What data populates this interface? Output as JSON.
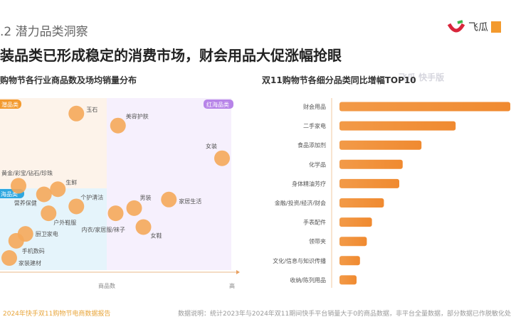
{
  "header": {
    "section": ".2 潜力品类洞察",
    "title": "装品类已形成稳定的消费市场，财会用品大促涨幅抢眼",
    "logo_text": "飞瓜"
  },
  "watermark": "飞瓜 快手版",
  "colors": {
    "accent": "#f39a2e",
    "bubble": "#f5a85a",
    "bar": "#f08a30",
    "q_potential": "#fdf3ea",
    "q_blue": "#e5f4fb",
    "q_red": "#f6f0fd",
    "tag_orange": "#f39a2e",
    "tag_blue": "#2ea7e0",
    "tag_purple": "#b784e8"
  },
  "chart_data": [
    {
      "type": "scatter",
      "title": "购物节各行业商品数及场均销量分布",
      "xlabel": "商品数",
      "x_high_label": "高",
      "quadrant_labels": {
        "top_left": "潜品类",
        "top_right": "红海品类",
        "bottom_left": "海品类"
      },
      "xlim": [
        0,
        100
      ],
      "ylim": [
        0,
        100
      ],
      "points": [
        {
          "label": "玉石",
          "x": 33,
          "y": 91
        },
        {
          "label": "美容护肤",
          "x": 51,
          "y": 84
        },
        {
          "label": "女装",
          "x": 96,
          "y": 65
        },
        {
          "label": "黄金/彩宝/钻石/珍珠",
          "x": 8,
          "y": 49
        },
        {
          "label": "生鲜",
          "x": 25,
          "y": 47
        },
        {
          "label": "营养保健",
          "x": 19,
          "y": 44
        },
        {
          "label": "个护清洁",
          "x": 33,
          "y": 37
        },
        {
          "label": "户外鞋服",
          "x": 21,
          "y": 33
        },
        {
          "label": "内衣/家居服/袜子",
          "x": 50,
          "y": 33
        },
        {
          "label": "男装",
          "x": 58,
          "y": 36
        },
        {
          "label": "家居生活",
          "x": 73,
          "y": 41
        },
        {
          "label": "女鞋",
          "x": 62,
          "y": 25
        },
        {
          "label": "厨卫家电",
          "x": 11,
          "y": 21
        },
        {
          "label": "手机数码",
          "x": 7,
          "y": 17
        },
        {
          "label": "家装建材",
          "x": 4,
          "y": 7
        }
      ]
    },
    {
      "type": "bar",
      "orientation": "horizontal",
      "title": "双11购物节各细分品类同比增幅TOP10",
      "categories": [
        "财会用品",
        "二手家电",
        "食品添加剂",
        "化学品",
        "身体精油芳疗",
        "金融/投资/经济/财会",
        "手表配件",
        "领带夹",
        "文化/信息与知识传播",
        "收纳/陈列用品"
      ],
      "values": [
        100,
        68,
        48,
        37,
        35,
        26,
        19,
        16,
        12,
        10
      ]
    }
  ],
  "footer": {
    "source": "2024年快手双11购物节电商数据报告",
    "note": "数据说明：统计2023年与2024年双11期间快手平台销量大于0的商品数据，非平台全量数据，部分数据已作脱敏化处"
  }
}
